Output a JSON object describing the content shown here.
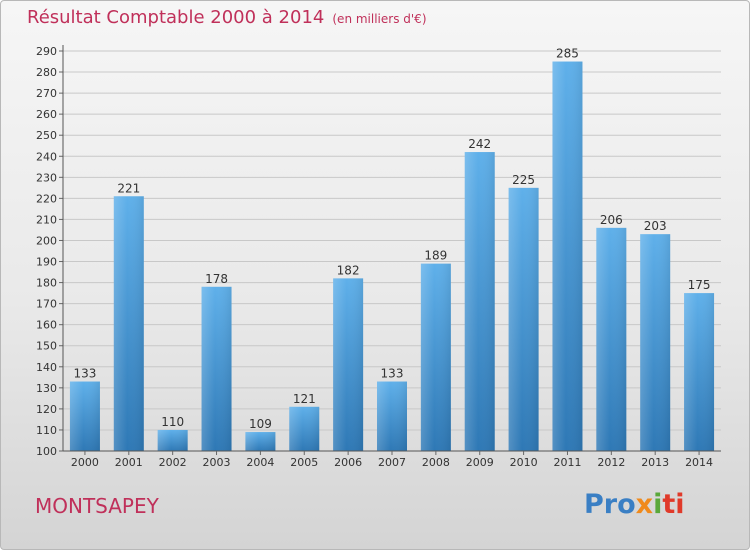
{
  "title": "Résultat Comptable 2000 à 2014",
  "unit_note": "(en milliers d'€)",
  "commune": "MONTSAPEY",
  "logo": {
    "parts": [
      "Pro",
      "x",
      "i",
      "ti"
    ]
  },
  "colors": {
    "accent_text": "#c0305a",
    "bar_top": "#5fb0ea",
    "bar_bottom": "#2e78b5"
  },
  "chart_data": {
    "type": "bar",
    "title": "Résultat Comptable 2000 à 2014",
    "xlabel": "",
    "ylabel": "",
    "categories": [
      "2000",
      "2001",
      "2002",
      "2003",
      "2004",
      "2005",
      "2006",
      "2007",
      "2008",
      "2009",
      "2010",
      "2011",
      "2012",
      "2013",
      "2014"
    ],
    "values": [
      133,
      221,
      110,
      178,
      109,
      121,
      182,
      133,
      189,
      242,
      225,
      285,
      206,
      203,
      175
    ],
    "ylim": [
      100,
      290
    ],
    "yticks": [
      100,
      110,
      120,
      130,
      140,
      150,
      160,
      170,
      180,
      190,
      200,
      210,
      220,
      230,
      240,
      250,
      260,
      270,
      280,
      290
    ],
    "grid": true,
    "data_labels": true
  }
}
